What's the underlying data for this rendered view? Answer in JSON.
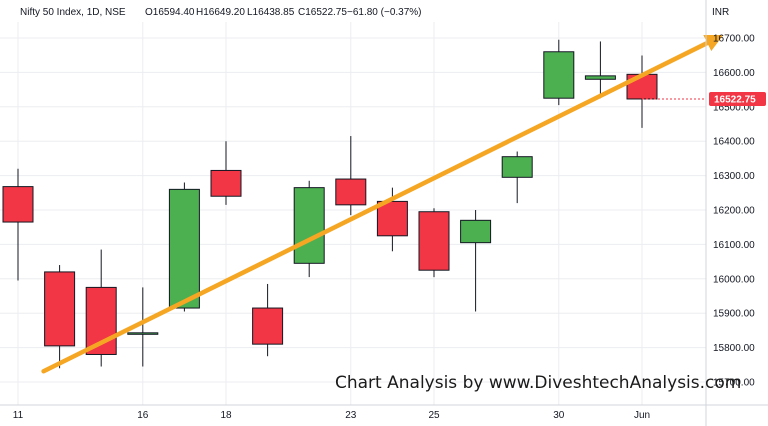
{
  "header": {
    "symbol": "Nifty 50 Index, 1D, NSE",
    "open": "O16594.40",
    "high": "H16649.20",
    "low": "L16438.85",
    "close": "C16522.75",
    "change": "−61.80 (−0.37%)"
  },
  "currency": "INR",
  "last_price_label": "16522.75",
  "watermark": "Chart Analysis by www.DiveshtechAnalysis.com",
  "colors": {
    "up": "#4caf50",
    "down": "#f23645",
    "trendline": "#f5a623",
    "grid": "#ecedf0",
    "axis": "#d1d4dc"
  },
  "chart_data": {
    "type": "candlestick",
    "y_ticks": [
      15700,
      15800,
      15900,
      16000,
      16100,
      16200,
      16300,
      16400,
      16500,
      16600,
      16700
    ],
    "y_tick_labels": [
      "15700.00",
      "15800.00",
      "15900.00",
      "16000.00",
      "16100.00",
      "16200.00",
      "16300.00",
      "16400.00",
      "16500.00",
      "16600.00",
      "16700.00"
    ],
    "ylim": [
      15625,
      16790
    ],
    "x_labels": [
      "11",
      "16",
      "18",
      "23",
      "25",
      "30",
      "Jun"
    ],
    "grid": true,
    "candles": [
      {
        "date": "11",
        "open": 16268,
        "high": 16320,
        "low": 15995,
        "close": 16165
      },
      {
        "date": "12",
        "open": 16020,
        "high": 16040,
        "low": 15740,
        "close": 15805
      },
      {
        "date": "13",
        "open": 15975,
        "high": 16085,
        "low": 15745,
        "close": 15780
      },
      {
        "date": "16",
        "open": 15840,
        "high": 15975,
        "low": 15745,
        "close": 15843
      },
      {
        "date": "17",
        "open": 15915,
        "high": 16280,
        "low": 15905,
        "close": 16260
      },
      {
        "date": "18",
        "open": 16315,
        "high": 16400,
        "low": 16215,
        "close": 16240
      },
      {
        "date": "19",
        "open": 15915,
        "high": 15985,
        "low": 15775,
        "close": 15810
      },
      {
        "date": "20",
        "open": 16045,
        "high": 16285,
        "low": 16005,
        "close": 16265
      },
      {
        "date": "23",
        "open": 16290,
        "high": 16415,
        "low": 16185,
        "close": 16215
      },
      {
        "date": "24",
        "open": 16225,
        "high": 16265,
        "low": 16080,
        "close": 16125
      },
      {
        "date": "25",
        "open": 16195,
        "high": 16205,
        "low": 16005,
        "close": 16025
      },
      {
        "date": "26",
        "open": 16105,
        "high": 16200,
        "low": 15905,
        "close": 16170
      },
      {
        "date": "27",
        "open": 16295,
        "high": 16370,
        "low": 16220,
        "close": 16355
      },
      {
        "date": "30",
        "open": 16525,
        "high": 16695,
        "low": 16505,
        "close": 16660
      },
      {
        "date": "31",
        "open": 16580,
        "high": 16690,
        "low": 16525,
        "close": 16590
      },
      {
        "date": "Jun 1",
        "open": 16594.4,
        "high": 16649.2,
        "low": 16438.85,
        "close": 16522.75
      }
    ],
    "trendline": {
      "from": {
        "x": "12",
        "y": 15740
      },
      "to": {
        "x": "Jun 1",
        "y": 16590
      }
    }
  }
}
